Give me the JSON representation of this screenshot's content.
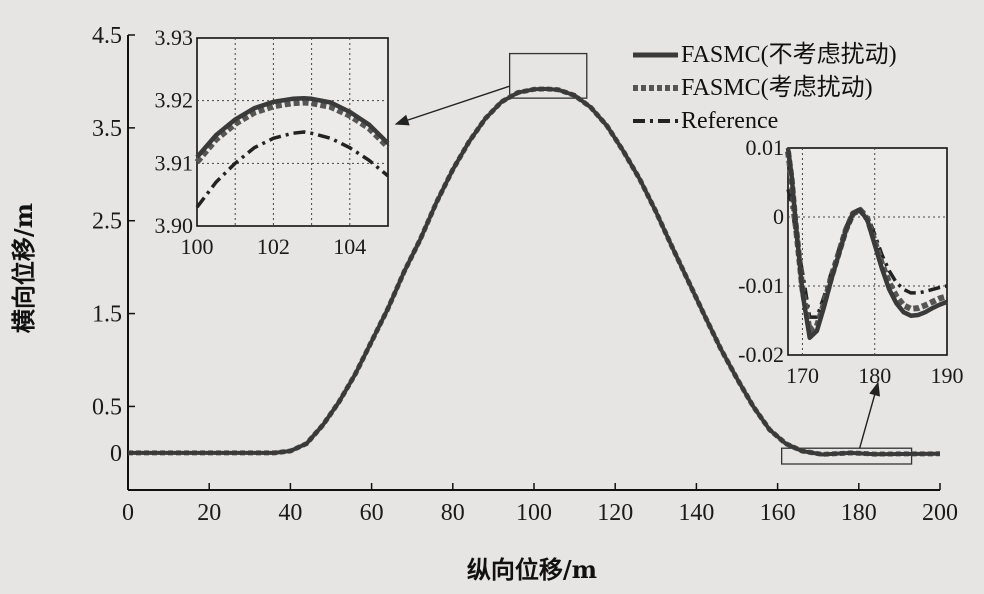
{
  "chart_data": {
    "type": "line",
    "xlabel": "纵向位移/m",
    "ylabel": "横向位移/m",
    "xlim": [
      0,
      200
    ],
    "ylim": [
      -0.4,
      4.5
    ],
    "xticks": [
      0,
      20,
      40,
      60,
      80,
      100,
      120,
      140,
      160,
      180,
      200
    ],
    "yticks": [
      {
        "value": 0,
        "label": "0"
      },
      {
        "value": 0.5,
        "label": "0.5"
      },
      {
        "value": 1.5,
        "label": "1.5"
      },
      {
        "value": 2.5,
        "label": "2.5"
      },
      {
        "value": 3.5,
        "label": "3.5"
      },
      {
        "value": 4.5,
        "label": "4.5"
      }
    ],
    "legend_position": "top-right",
    "series": [
      {
        "name": "FASMC(不考虑扰动)",
        "style": "solid",
        "color": "#3a3a3a",
        "x": [
          0,
          20,
          36,
          40,
          44,
          48,
          52,
          56,
          60,
          64,
          68,
          72,
          76,
          80,
          84,
          88,
          92,
          96,
          100,
          103,
          106,
          110,
          114,
          118,
          122,
          126,
          130,
          134,
          138,
          142,
          146,
          150,
          154,
          158,
          162,
          166,
          171,
          178,
          184,
          190,
          200
        ],
        "y": [
          0,
          0,
          0,
          0.02,
          0.1,
          0.3,
          0.55,
          0.85,
          1.2,
          1.55,
          1.95,
          2.3,
          2.7,
          3.05,
          3.35,
          3.6,
          3.78,
          3.88,
          3.915,
          3.92,
          3.91,
          3.85,
          3.72,
          3.52,
          3.25,
          2.95,
          2.6,
          2.22,
          1.85,
          1.48,
          1.12,
          0.8,
          0.5,
          0.25,
          0.1,
          0.02,
          -0.018,
          0,
          -0.014,
          -0.012,
          -0.01
        ]
      },
      {
        "name": "FASMC(考虑扰动)",
        "style": "dotted",
        "color": "#555555",
        "x": [
          0,
          20,
          36,
          40,
          44,
          48,
          52,
          56,
          60,
          64,
          68,
          72,
          76,
          80,
          84,
          88,
          92,
          96,
          100,
          103,
          106,
          110,
          114,
          118,
          122,
          126,
          130,
          134,
          138,
          142,
          146,
          150,
          154,
          158,
          162,
          166,
          171,
          178,
          184,
          190,
          200
        ],
        "y": [
          0,
          0,
          0,
          0.02,
          0.1,
          0.3,
          0.55,
          0.85,
          1.2,
          1.55,
          1.95,
          2.3,
          2.7,
          3.05,
          3.35,
          3.6,
          3.78,
          3.88,
          3.915,
          3.92,
          3.91,
          3.85,
          3.72,
          3.52,
          3.25,
          2.95,
          2.6,
          2.22,
          1.85,
          1.48,
          1.12,
          0.8,
          0.5,
          0.25,
          0.1,
          0.02,
          -0.017,
          0,
          -0.013,
          -0.011,
          -0.01
        ]
      },
      {
        "name": "Reference",
        "style": "dash-dot",
        "color": "#222222",
        "x": [
          0,
          20,
          36,
          40,
          44,
          48,
          52,
          56,
          60,
          64,
          68,
          72,
          76,
          80,
          84,
          88,
          92,
          96,
          100,
          103,
          106,
          110,
          114,
          118,
          122,
          126,
          130,
          134,
          138,
          142,
          146,
          150,
          154,
          158,
          162,
          166,
          171,
          178,
          184,
          190,
          200
        ],
        "y": [
          0,
          0,
          0,
          0.02,
          0.1,
          0.3,
          0.55,
          0.85,
          1.2,
          1.55,
          1.95,
          2.3,
          2.7,
          3.05,
          3.35,
          3.6,
          3.78,
          3.88,
          3.912,
          3.916,
          3.908,
          3.85,
          3.72,
          3.52,
          3.25,
          2.95,
          2.6,
          2.22,
          1.85,
          1.48,
          1.12,
          0.8,
          0.5,
          0.25,
          0.1,
          0.02,
          -0.015,
          0.001,
          -0.011,
          -0.01,
          -0.01
        ]
      }
    ],
    "insets": [
      {
        "xlim": [
          100,
          105
        ],
        "ylim": [
          3.9,
          3.93
        ],
        "xticks": [
          {
            "value": 100,
            "label": "100"
          },
          {
            "value": 102,
            "label": "102"
          },
          {
            "value": 104,
            "label": "104"
          }
        ],
        "yticks": [
          {
            "value": 3.9,
            "label": "3.90"
          },
          {
            "value": 3.91,
            "label": "3.91"
          },
          {
            "value": 3.92,
            "label": "3.92"
          },
          {
            "value": 3.93,
            "label": "3.93"
          }
        ],
        "series": [
          {
            "name": "FASMC(不考虑扰动)",
            "x": [
              100,
              100.5,
              101,
              101.5,
              102,
              102.5,
              102.8,
              103,
              103.5,
              104,
              104.5,
              105
            ],
            "y": [
              3.911,
              3.9145,
              3.917,
              3.9188,
              3.9198,
              3.9203,
              3.9204,
              3.9203,
              3.9197,
              3.9182,
              3.9162,
              3.9132
            ]
          },
          {
            "name": "FASMC(考虑扰动)",
            "x": [
              100,
              100.5,
              101,
              101.5,
              102,
              102.5,
              102.8,
              103,
              103.5,
              104,
              104.5,
              105
            ],
            "y": [
              3.9102,
              3.9138,
              3.9163,
              3.9181,
              3.9191,
              3.9196,
              3.9197,
              3.9196,
              3.919,
              3.9176,
              3.9156,
              3.9126
            ]
          },
          {
            "name": "Reference",
            "x": [
              100,
              100.5,
              101,
              101.5,
              102,
              102.5,
              102.8,
              103,
              103.5,
              104,
              104.5,
              105
            ],
            "y": [
              3.903,
              3.907,
              3.91,
              3.9125,
              3.914,
              3.9148,
              3.915,
              3.9148,
              3.914,
              3.9125,
              3.9105,
              3.908
            ]
          }
        ]
      },
      {
        "xlim": [
          168,
          190
        ],
        "ylim": [
          -0.02,
          0.01
        ],
        "xticks": [
          {
            "value": 170,
            "label": "170"
          },
          {
            "value": 180,
            "label": "180"
          },
          {
            "value": 190,
            "label": "190"
          }
        ],
        "yticks": [
          {
            "value": 0.01,
            "label": "0.01"
          },
          {
            "value": 0,
            "label": "0"
          },
          {
            "value": -0.01,
            "label": "-0.01"
          },
          {
            "value": -0.02,
            "label": "-0.02"
          }
        ],
        "series": [
          {
            "name": "FASMC(不考虑扰动)",
            "x": [
              168,
              168.5,
              169,
              170,
              171,
              172,
              173,
              174,
              175,
              176,
              177,
              178,
              179,
              180,
              181,
              182,
              183,
              184,
              185,
              186,
              187,
              188,
              189,
              190
            ],
            "y": [
              0.01,
              0.006,
              0.0,
              -0.011,
              -0.0175,
              -0.0165,
              -0.013,
              -0.009,
              -0.0055,
              -0.002,
              0.0005,
              0.001,
              -0.0005,
              -0.004,
              -0.0075,
              -0.0105,
              -0.0125,
              -0.0138,
              -0.0143,
              -0.0142,
              -0.0138,
              -0.0132,
              -0.0127,
              -0.0123
            ]
          },
          {
            "name": "FASMC(考虑扰动)",
            "x": [
              168,
              168.5,
              169,
              170,
              171,
              172,
              173,
              174,
              175,
              176,
              177,
              178,
              179,
              180,
              181,
              182,
              183,
              184,
              185,
              186,
              187,
              188,
              189,
              190
            ],
            "y": [
              0.0095,
              0.0055,
              -0.0005,
              -0.0105,
              -0.0165,
              -0.0158,
              -0.0125,
              -0.0087,
              -0.0053,
              -0.0019,
              0.0005,
              0.001,
              -0.0003,
              -0.0035,
              -0.0068,
              -0.0095,
              -0.0115,
              -0.0128,
              -0.0133,
              -0.0132,
              -0.0128,
              -0.0123,
              -0.0118,
              -0.0115
            ]
          },
          {
            "name": "Reference",
            "x": [
              168,
              168.5,
              169,
              170,
              171,
              172,
              173,
              174,
              175,
              176,
              177,
              178,
              179,
              180,
              181,
              182,
              183,
              184,
              185,
              186,
              187,
              188,
              189,
              190
            ],
            "y": [
              0.004,
              0.002,
              -0.002,
              -0.008,
              -0.0145,
              -0.0145,
              -0.0115,
              -0.008,
              -0.0048,
              -0.0015,
              0.0007,
              0.0012,
              0.0002,
              -0.0025,
              -0.0055,
              -0.0078,
              -0.0095,
              -0.0105,
              -0.011,
              -0.011,
              -0.0108,
              -0.0105,
              -0.0102,
              -0.01
            ]
          }
        ]
      }
    ]
  }
}
